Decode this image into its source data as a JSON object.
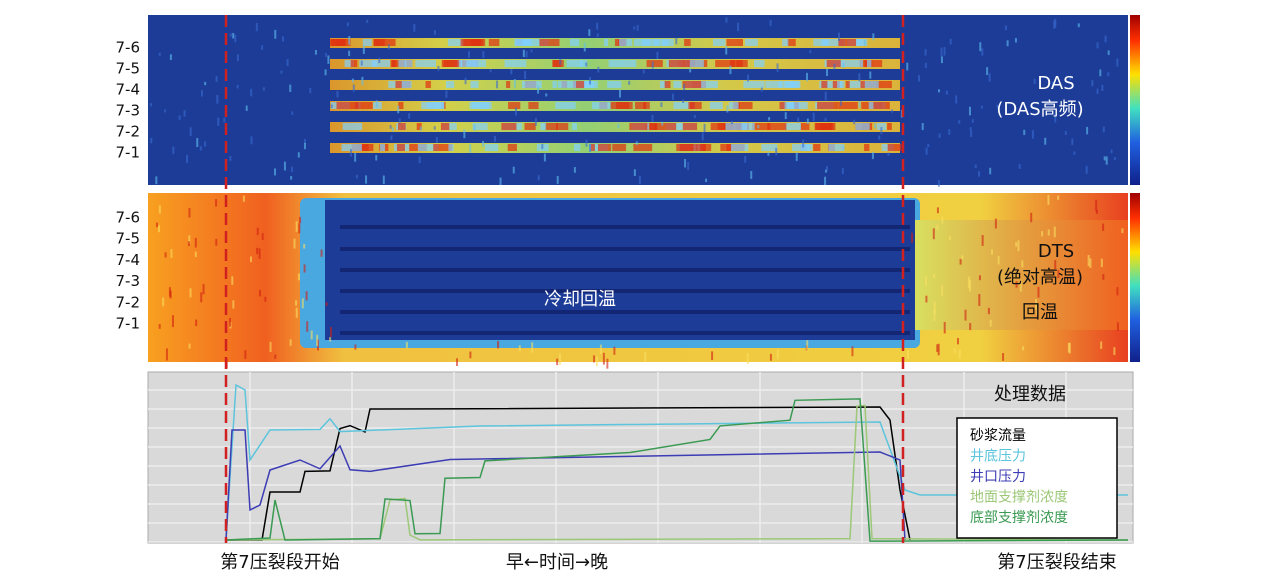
{
  "das_panel": {
    "stage_labels": [
      "7-6",
      "7-5",
      "7-4",
      "7-3",
      "7-2",
      "7-1"
    ],
    "label": "DAS",
    "sublabel": "(DAS高频)"
  },
  "dts_panel": {
    "stage_labels": [
      "7-6",
      "7-5",
      "7-4",
      "7-3",
      "7-2",
      "7-1"
    ],
    "label": "DTS",
    "sublabel": "(绝对高温)",
    "cooling_note": "冷却回温",
    "warming_note": "回温"
  },
  "process_panel": {
    "title": "处理数据",
    "legend": [
      {
        "name": "砂浆流量",
        "color": "#000000"
      },
      {
        "name": "井底压力",
        "color": "#5cc4dc"
      },
      {
        "name": "井口压力",
        "color": "#3c3cb4"
      },
      {
        "name": "地面支撑剂浓度",
        "color": "#9cc878"
      },
      {
        "name": "底部支撑剂浓度",
        "color": "#3a9a52"
      }
    ]
  },
  "footer": {
    "start": "第7压裂段开始",
    "time_axis": "早←时间→晚",
    "end": "第7压裂段结束"
  }
}
